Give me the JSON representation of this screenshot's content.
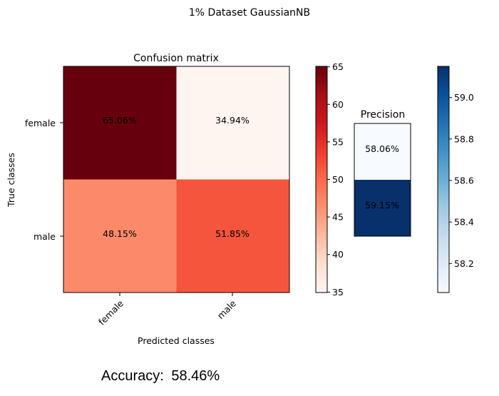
{
  "figure": {
    "title": "1% Dataset GaussianNB",
    "accuracy_label": "Accuracy:",
    "accuracy_value": "58.46%"
  },
  "chart_data": [
    {
      "type": "heatmap",
      "title": "Confusion matrix",
      "xlabel": "Predicted classes",
      "ylabel": "True classes",
      "x_categories": [
        "female",
        "male"
      ],
      "y_categories": [
        "female",
        "male"
      ],
      "values": [
        [
          65.06,
          34.94
        ],
        [
          48.15,
          51.85
        ]
      ],
      "cell_labels": [
        [
          "65.06%",
          "34.94%"
        ],
        [
          "48.15%",
          "51.85%"
        ]
      ],
      "colormap": "Reds",
      "colorbar": {
        "range": [
          34.94,
          65.06
        ],
        "ticks": [
          35,
          40,
          45,
          50,
          55,
          60,
          65
        ],
        "tick_labels": [
          "35",
          "40",
          "45",
          "50",
          "55",
          "60",
          "65"
        ]
      },
      "cell_colors": [
        [
          "#67000d",
          "#fff5f0"
        ],
        [
          "#fc8a6a",
          "#f5553d"
        ]
      ],
      "grid": false
    },
    {
      "type": "heatmap",
      "title": "Precision",
      "values": [
        58.06,
        59.15
      ],
      "cell_labels": [
        "58.06%",
        "59.15%"
      ],
      "colormap": "Blues",
      "cell_colors": [
        "#f7fbff",
        "#08306b"
      ],
      "label_colors": [
        "#000000",
        "#ffffff"
      ],
      "colorbar": {
        "range": [
          58.06,
          59.15
        ],
        "ticks": [
          58.2,
          58.4,
          58.6,
          58.8,
          59.0
        ],
        "tick_labels": [
          "58.2",
          "58.4",
          "58.6",
          "58.8",
          "59.0"
        ]
      },
      "grid": false
    }
  ]
}
